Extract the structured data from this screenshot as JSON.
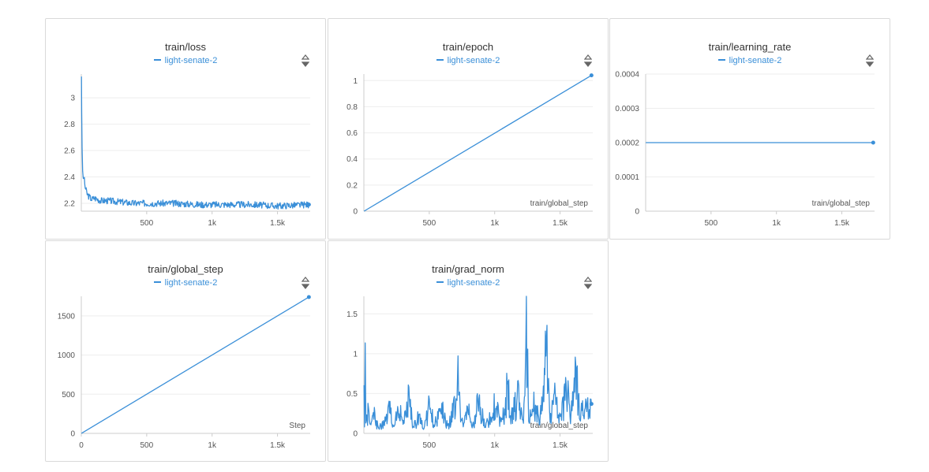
{
  "series_name": "light-senate-2",
  "accent_color": "#3a8fd8",
  "icons": {
    "sort": "sort-icon"
  },
  "chart_data": [
    {
      "id": "loss",
      "type": "line",
      "title": "train/loss",
      "series": [
        {
          "name": "light-senate-2"
        }
      ],
      "xlabel": "",
      "x_ticks": [
        "500",
        "1k",
        "1.5k"
      ],
      "y_ticks": [
        "2.2",
        "2.4",
        "2.6",
        "2.8",
        "3"
      ],
      "xlim": [
        0,
        1750
      ],
      "ylim": [
        2.14,
        3.18
      ],
      "data": [
        [
          1,
          3.17
        ],
        [
          3,
          2.9
        ],
        [
          6,
          2.6
        ],
        [
          10,
          2.45
        ],
        [
          15,
          2.38
        ],
        [
          20,
          2.4
        ],
        [
          30,
          2.32
        ],
        [
          45,
          2.27
        ],
        [
          60,
          2.25
        ],
        [
          80,
          2.23
        ],
        [
          100,
          2.24
        ],
        [
          150,
          2.22
        ],
        [
          200,
          2.22
        ],
        [
          300,
          2.21
        ],
        [
          400,
          2.2
        ],
        [
          500,
          2.2
        ],
        [
          700,
          2.2
        ],
        [
          900,
          2.19
        ],
        [
          1100,
          2.19
        ],
        [
          1300,
          2.19
        ],
        [
          1500,
          2.18
        ],
        [
          1740,
          2.19
        ]
      ],
      "noise": 0.05,
      "end_dot": true
    },
    {
      "id": "epoch",
      "type": "line",
      "title": "train/epoch",
      "series": [
        {
          "name": "light-senate-2"
        }
      ],
      "xlabel": "train/global_step",
      "x_ticks": [
        "500",
        "1k",
        "1.5k"
      ],
      "y_ticks": [
        "0",
        "0.2",
        "0.4",
        "0.6",
        "0.8",
        "1"
      ],
      "xlim": [
        0,
        1750
      ],
      "ylim": [
        0,
        1.05
      ],
      "data": [
        [
          1,
          0
        ],
        [
          1740,
          1.04
        ]
      ],
      "end_dot": true
    },
    {
      "id": "lr",
      "type": "line",
      "title": "train/learning_rate",
      "series": [
        {
          "name": "light-senate-2"
        }
      ],
      "xlabel": "train/global_step",
      "x_ticks": [
        "500",
        "1k",
        "1.5k"
      ],
      "y_ticks": [
        "0",
        "0.0001",
        "0.0002",
        "0.0003",
        "0.0004"
      ],
      "xlim": [
        0,
        1750
      ],
      "ylim": [
        0,
        0.0004
      ],
      "data": [
        [
          1,
          0.0002
        ],
        [
          1740,
          0.0002
        ]
      ],
      "end_dot": true
    },
    {
      "id": "gstep",
      "type": "line",
      "title": "train/global_step",
      "series": [
        {
          "name": "light-senate-2"
        }
      ],
      "xlabel": "Step",
      "x_ticks": [
        "0",
        "500",
        "1k",
        "1.5k"
      ],
      "y_ticks": [
        "0",
        "500",
        "1000",
        "1500"
      ],
      "xlim": [
        0,
        1750
      ],
      "ylim": [
        0,
        1750
      ],
      "data": [
        [
          1,
          1
        ],
        [
          1740,
          1740
        ]
      ],
      "end_dot": true
    },
    {
      "id": "gradnorm",
      "type": "line",
      "title": "train/grad_norm",
      "series": [
        {
          "name": "light-senate-2"
        }
      ],
      "xlabel": "train/global_step",
      "x_ticks": [
        "500",
        "1k",
        "1.5k"
      ],
      "y_ticks": [
        "0",
        "0.5",
        "1",
        "1.5"
      ],
      "xlim": [
        0,
        1750
      ],
      "ylim": [
        0,
        1.72
      ],
      "data": [
        [
          1,
          1.24
        ],
        [
          5,
          0.25
        ],
        [
          10,
          1.05
        ],
        [
          15,
          0.3
        ],
        [
          25,
          0.22
        ],
        [
          35,
          0.45
        ],
        [
          50,
          0.1
        ],
        [
          80,
          0.3
        ],
        [
          110,
          0.08
        ],
        [
          150,
          0.15
        ],
        [
          200,
          0.4
        ],
        [
          230,
          0.1
        ],
        [
          270,
          0.5
        ],
        [
          300,
          0.12
        ],
        [
          340,
          0.55
        ],
        [
          380,
          0.1
        ],
        [
          420,
          0.3
        ],
        [
          460,
          0.1
        ],
        [
          500,
          0.45
        ],
        [
          540,
          0.15
        ],
        [
          600,
          0.35
        ],
        [
          650,
          0.12
        ],
        [
          700,
          0.55
        ],
        [
          720,
          0.9
        ],
        [
          740,
          0.2
        ],
        [
          800,
          0.35
        ],
        [
          840,
          0.1
        ],
        [
          880,
          0.6
        ],
        [
          900,
          0.3
        ],
        [
          950,
          0.15
        ],
        [
          1000,
          0.5
        ],
        [
          1050,
          0.2
        ],
        [
          1080,
          0.4
        ],
        [
          1100,
          0.93
        ],
        [
          1120,
          0.2
        ],
        [
          1180,
          0.6
        ],
        [
          1220,
          0.15
        ],
        [
          1246,
          1.72
        ],
        [
          1260,
          0.2
        ],
        [
          1300,
          0.5
        ],
        [
          1340,
          0.2
        ],
        [
          1380,
          0.85
        ],
        [
          1400,
          1.43
        ],
        [
          1420,
          0.3
        ],
        [
          1460,
          0.6
        ],
        [
          1500,
          0.2
        ],
        [
          1550,
          0.7
        ],
        [
          1580,
          0.35
        ],
        [
          1620,
          0.9
        ],
        [
          1660,
          0.3
        ],
        [
          1700,
          0.55
        ],
        [
          1740,
          0.37
        ]
      ],
      "noise": 0.18,
      "end_dot": true
    }
  ]
}
